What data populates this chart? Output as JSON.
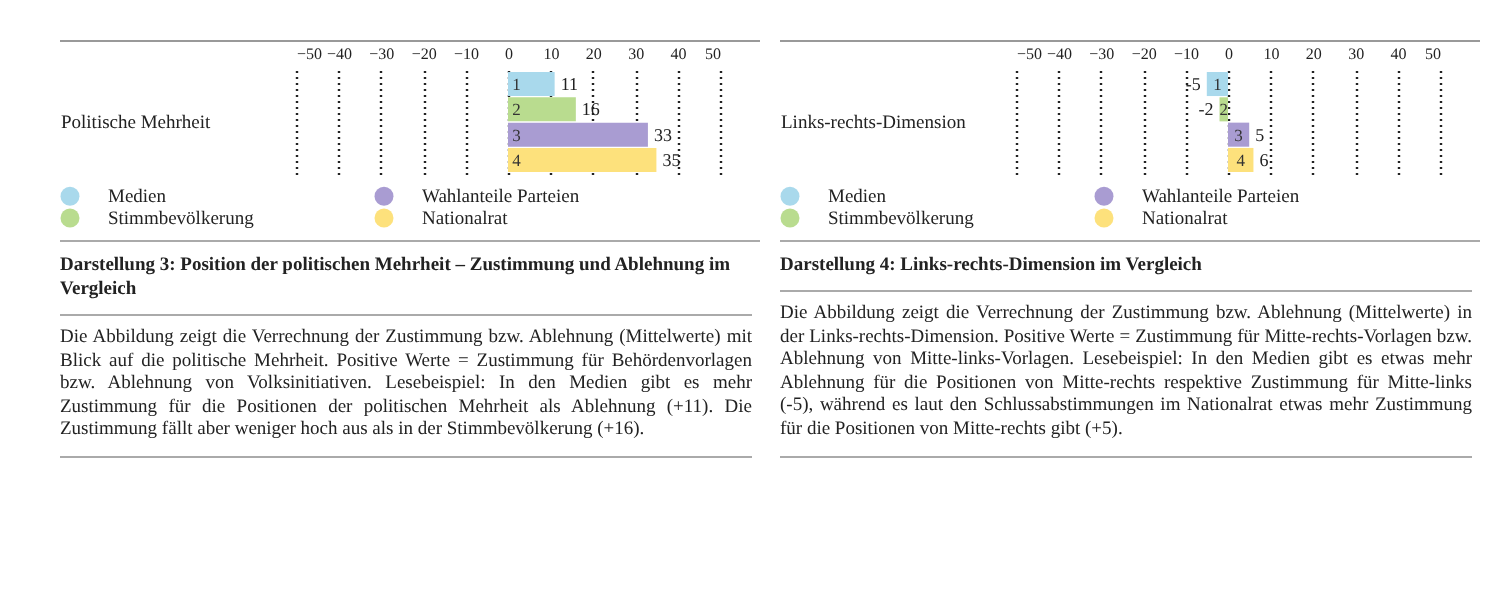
{
  "chart_data": [
    {
      "type": "bar",
      "orientation": "horizontal",
      "categories": [
        "Politische Mehrheit"
      ],
      "series": [
        {
          "name": "Medien",
          "color": "#a9d9ec",
          "values": [
            11
          ]
        },
        {
          "name": "Stimmbevölkerung",
          "color": "#b9dc8f",
          "values": [
            16
          ]
        },
        {
          "name": "Wahlanteile Parteien",
          "color": "#a99cd2",
          "values": [
            33
          ]
        },
        {
          "name": "Nationalrat",
          "color": "#fde17c",
          "values": [
            35
          ]
        }
      ],
      "xlim": [
        -50,
        50
      ],
      "xticks": [
        -50,
        -40,
        -30,
        -20,
        -10,
        0,
        10,
        20,
        30,
        40,
        50
      ],
      "grid": "x",
      "legend": "bottom left",
      "data_labels": true,
      "title": "Darstellung 3: Position der politischen Mehrheit – Zustimmung und Ablehnung im Vergleich",
      "annotations": [
        {
          "text": "1",
          "x": 2,
          "y": "Politische Mehrheit"
        },
        {
          "text": "2",
          "x": 2,
          "y": "Politische Mehrheit"
        },
        {
          "text": "3",
          "x": 2,
          "y": "Politische Mehrheit"
        },
        {
          "text": "4",
          "x": 2,
          "y": "Politische Mehrheit"
        },
        "Die Abbildung zeigt die Verrechnung der Zustimmung bzw. Ablehnung (Mittelwerte) mit Blick auf die politische Mehrheit. Positive Werte = Zustimmung für Behördenvorlagen bzw. Ablehnung von Volksinitiativen. Lesebeispiel: In den Medien gibt es mehr Zustimmung für die Positionen der politischen Mehrheit als Ablehnung (+11). Die Zustimmung fällt aber weniger hoch aus als in der Stimmbevölkerung (+16)."
      ]
    },
    {
      "type": "bar",
      "orientation": "horizontal",
      "categories": [
        "Links-rechts-Dimension"
      ],
      "series": [
        {
          "name": "Medien",
          "color": "#a9d9ec",
          "values": [
            -5
          ]
        },
        {
          "name": "Stimmbevölkerung",
          "color": "#b9dc8f",
          "values": [
            -2
          ]
        },
        {
          "name": "Wahlanteile Parteien",
          "color": "#a99cd2",
          "values": [
            5
          ]
        },
        {
          "name": "Nationalrat",
          "color": "#fde17c",
          "values": [
            6
          ]
        }
      ],
      "xlim": [
        -50,
        50
      ],
      "xticks": [
        -50,
        -40,
        -30,
        -20,
        -10,
        0,
        10,
        20,
        30,
        40,
        50
      ],
      "grid": "x",
      "legend": "bottom left",
      "data_labels": true,
      "title": "Darstellung 4: Links-rechts-Dimension im Vergleich",
      "annotations": [
        {
          "text": "1",
          "x": -2.5,
          "y": "Links-rechts-Dimension"
        },
        {
          "text": "2",
          "x": -1,
          "y": "Links-rechts-Dimension"
        },
        {
          "text": "3",
          "x": 2.5,
          "y": "Links-rechts-Dimension"
        },
        {
          "text": "4",
          "x": 3,
          "y": "Links-rechts-Dimension"
        },
        "Die Abbildung zeigt die Verrechnung der Zustimmung bzw. Ablehnung (Mittelwerte) in der Links-rechts-Dimension. Positive Werte = Zustimmung für Mitte-rechts-Vorlagen bzw. Ablehnung von Mitte-links-Vorlagen. Lesebeispiel: In den Medien gibt es etwas mehr Ablehnung für die Positionen von Mitte-rechts respektive Zustimmung für Mitte-links (-5), während es laut den Schlussabstimmungen im Nationalrat etwas mehr Zustimmung für die Positionen von Mitte-rechts gibt (+5)."
      ]
    }
  ]
}
